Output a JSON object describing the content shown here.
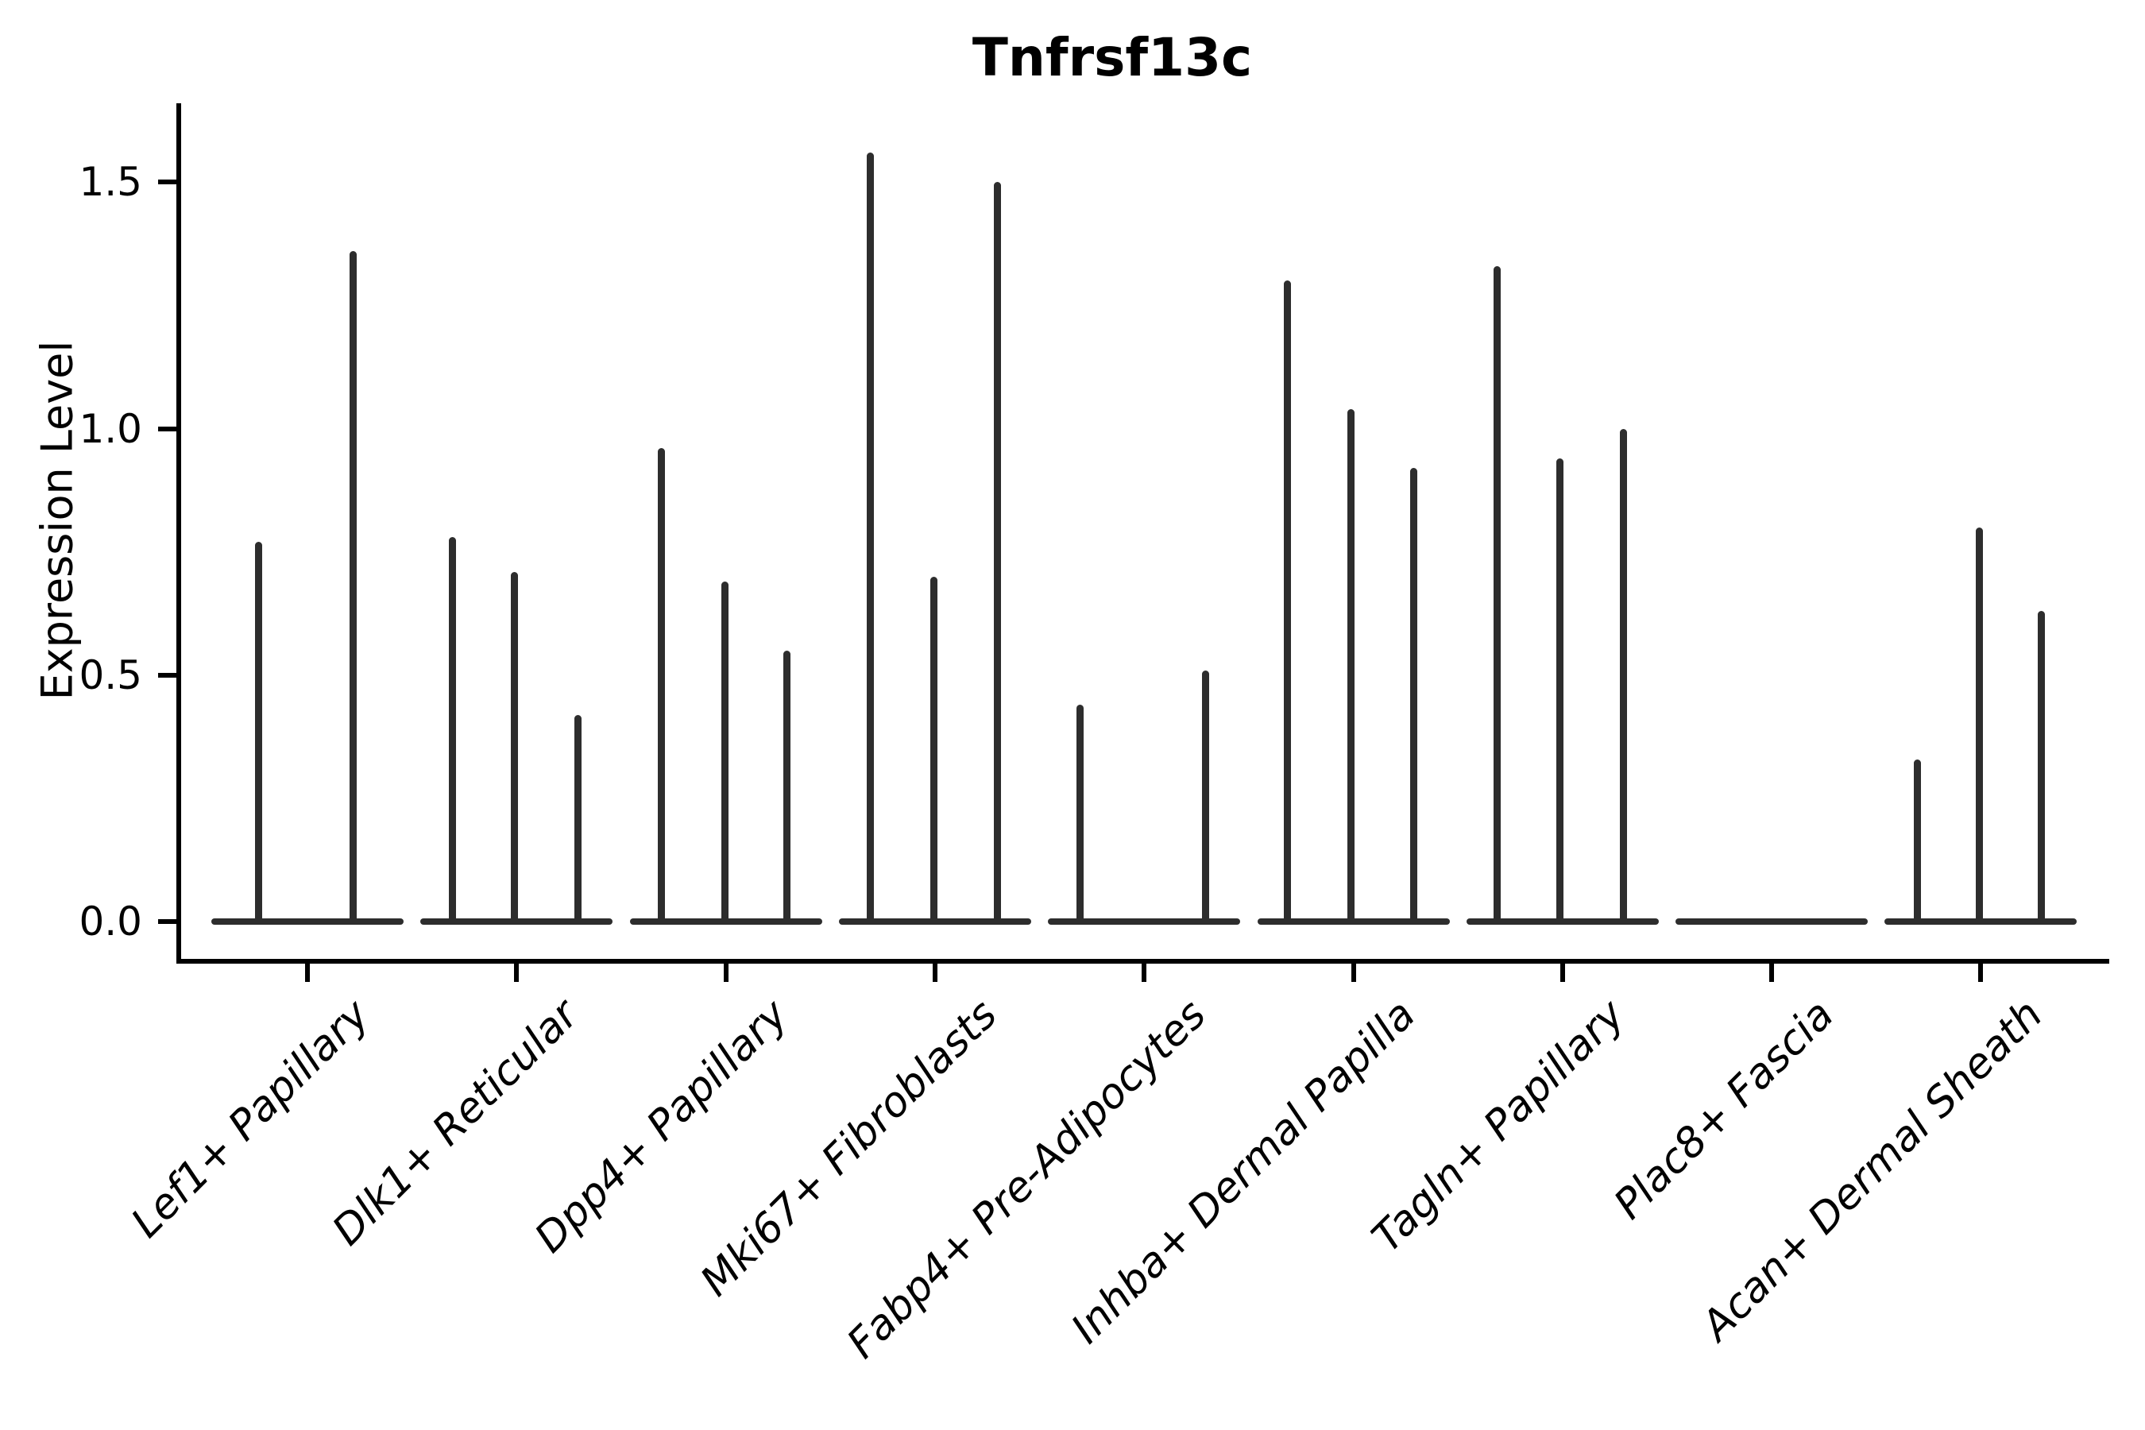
{
  "chart_data": {
    "type": "violin",
    "title": "Tnfrsf13c",
    "xlabel": "",
    "ylabel": "Expression Level",
    "ylim": [
      -0.08,
      1.66
    ],
    "yticks": [
      0.0,
      0.5,
      1.0,
      1.5
    ],
    "ytick_labels": [
      "0.0",
      "0.5",
      "1.0",
      "1.5"
    ],
    "grid": false,
    "legend": null,
    "baseline_value": 0,
    "categories": [
      "Lef1+ Papillary",
      "Dlk1+ Reticular",
      "Dpp4+ Papillary",
      "Mki67+ Fibroblasts",
      "Fabp4+ Pre-Adipocytes",
      "Inhba+ Dermal Papilla",
      "Tagln+ Papillary",
      "Plac8+ Fascia",
      "Acan+ Dermal Sheath"
    ],
    "groups": [
      {
        "label": "Lef1+ Papillary",
        "violins": [
          {
            "max": 0.77,
            "offset": -62
          },
          {
            "max": 1.36,
            "offset": 57
          }
        ]
      },
      {
        "label": "Dlk1+ Reticular",
        "violins": [
          {
            "max": 0.78,
            "offset": -81
          },
          {
            "max": 0.71,
            "offset": -3
          },
          {
            "max": 0.42,
            "offset": 77
          }
        ]
      },
      {
        "label": "Dpp4+ Papillary",
        "violins": [
          {
            "max": 0.96,
            "offset": -81
          },
          {
            "max": 0.69,
            "offset": -1
          },
          {
            "max": 0.55,
            "offset": 77
          }
        ]
      },
      {
        "label": "Mki67+ Fibroblasts",
        "violins": [
          {
            "max": 1.56,
            "offset": -81
          },
          {
            "max": 0.7,
            "offset": -1
          },
          {
            "max": 1.5,
            "offset": 79
          }
        ]
      },
      {
        "label": "Fabp4+ Pre-Adipocytes",
        "violins": [
          {
            "max": 0.44,
            "offset": -81
          },
          {
            "max": 0.51,
            "offset": 77
          }
        ]
      },
      {
        "label": "Inhba+ Dermal Papilla",
        "violins": [
          {
            "max": 1.3,
            "offset": -83
          },
          {
            "max": 1.04,
            "offset": -3
          },
          {
            "max": 0.92,
            "offset": 76
          }
        ]
      },
      {
        "label": "Tagln+ Papillary",
        "violins": [
          {
            "max": 1.33,
            "offset": -82
          },
          {
            "max": 0.94,
            "offset": -3
          },
          {
            "max": 1.0,
            "offset": 77
          }
        ]
      },
      {
        "label": "Plac8+ Fascia",
        "violins": []
      },
      {
        "label": "Acan+ Dermal Sheath",
        "violins": [
          {
            "max": 0.33,
            "offset": -80
          },
          {
            "max": 0.8,
            "offset": -2
          },
          {
            "max": 0.63,
            "offset": 76
          }
        ]
      }
    ]
  },
  "style": {
    "background": "#ffffff",
    "axis_color": "#000000",
    "violin_color": "#2d2d2d",
    "text_color": "#000000"
  }
}
